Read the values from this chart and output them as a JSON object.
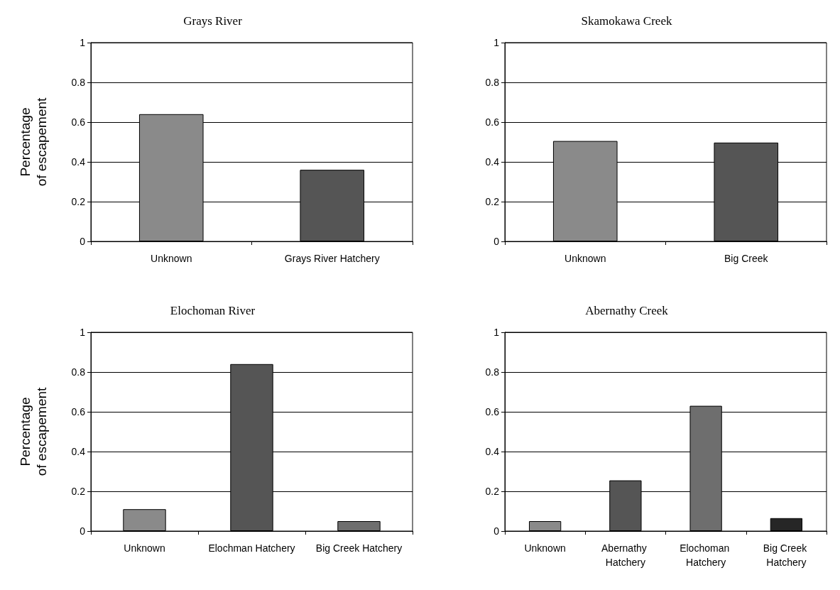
{
  "chart_data": [
    {
      "type": "bar",
      "title": "Grays River",
      "ylabel": "Percentage\nof escapement",
      "categories": [
        "Unknown",
        "Grays River Hatchery"
      ],
      "values": [
        0.64,
        0.36
      ],
      "colors": [
        "#8a8a8a",
        "#555555"
      ],
      "ylim": [
        0,
        1
      ],
      "yticks": [
        0,
        0.2,
        0.4,
        0.6,
        0.8,
        1
      ],
      "grid": "y"
    },
    {
      "type": "bar",
      "title": "Skamokawa Creek",
      "categories": [
        "Unknown",
        "Big Creek"
      ],
      "values": [
        0.505,
        0.497
      ],
      "colors": [
        "#8a8a8a",
        "#555555"
      ],
      "ylim": [
        0,
        1
      ],
      "yticks": [
        0,
        0.2,
        0.4,
        0.6,
        0.8,
        1
      ],
      "grid": "y"
    },
    {
      "type": "bar",
      "title": "Elochoman River",
      "ylabel": "Percentage\nof escapement",
      "categories": [
        "Unknown",
        "Elochman Hatchery",
        "Big Creek Hatchery"
      ],
      "values": [
        0.11,
        0.84,
        0.05
      ],
      "colors": [
        "#8a8a8a",
        "#555555",
        "#6e6e6e"
      ],
      "ylim": [
        0,
        1
      ],
      "yticks": [
        0,
        0.2,
        0.4,
        0.6,
        0.8,
        1
      ],
      "grid": "y"
    },
    {
      "type": "bar",
      "title": "Abernathy Creek",
      "categories": [
        "Unknown",
        "Abernathy Hatchery",
        "Elochoman Hatchery",
        "Big Creek Hatchery"
      ],
      "values": [
        0.05,
        0.255,
        0.63,
        0.065
      ],
      "colors": [
        "#8a8a8a",
        "#555555",
        "#6e6e6e",
        "#262626"
      ],
      "ylim": [
        0,
        1
      ],
      "yticks": [
        0,
        0.2,
        0.4,
        0.6,
        0.8,
        1
      ],
      "grid": "y"
    }
  ]
}
